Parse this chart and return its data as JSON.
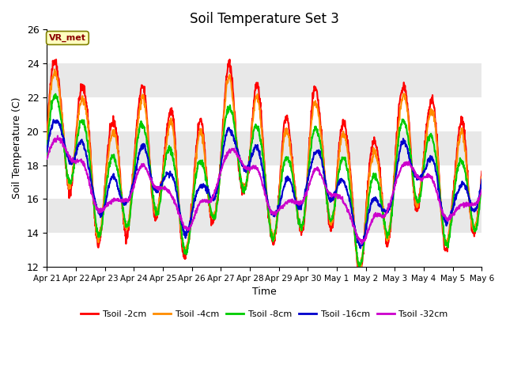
{
  "title": "Soil Temperature Set 3",
  "xlabel": "Time",
  "ylabel": "Soil Temperature (C)",
  "ylim": [
    12,
    26
  ],
  "yticks": [
    12,
    14,
    16,
    18,
    20,
    22,
    24,
    26
  ],
  "xlabels": [
    "Apr 21",
    "Apr 22",
    "Apr 23",
    "Apr 24",
    "Apr 25",
    "Apr 26",
    "Apr 27",
    "Apr 28",
    "Apr 29",
    "Apr 30",
    "May 1",
    "May 2",
    "May 3",
    "May 4",
    "May 5",
    "May 6"
  ],
  "colors": {
    "Tsoil -2cm": "#FF0000",
    "Tsoil -4cm": "#FF8C00",
    "Tsoil -8cm": "#00CC00",
    "Tsoil -16cm": "#0000CC",
    "Tsoil -32cm": "#CC00CC"
  },
  "annotation_text": "VR_met",
  "title_fontsize": 12,
  "axis_fontsize": 9,
  "line_width": 1.5,
  "fig_bg": "#FFFFFF",
  "plot_bg": "#E8E8E8",
  "band_color": "#FFFFFF",
  "band_alpha": 1.0
}
